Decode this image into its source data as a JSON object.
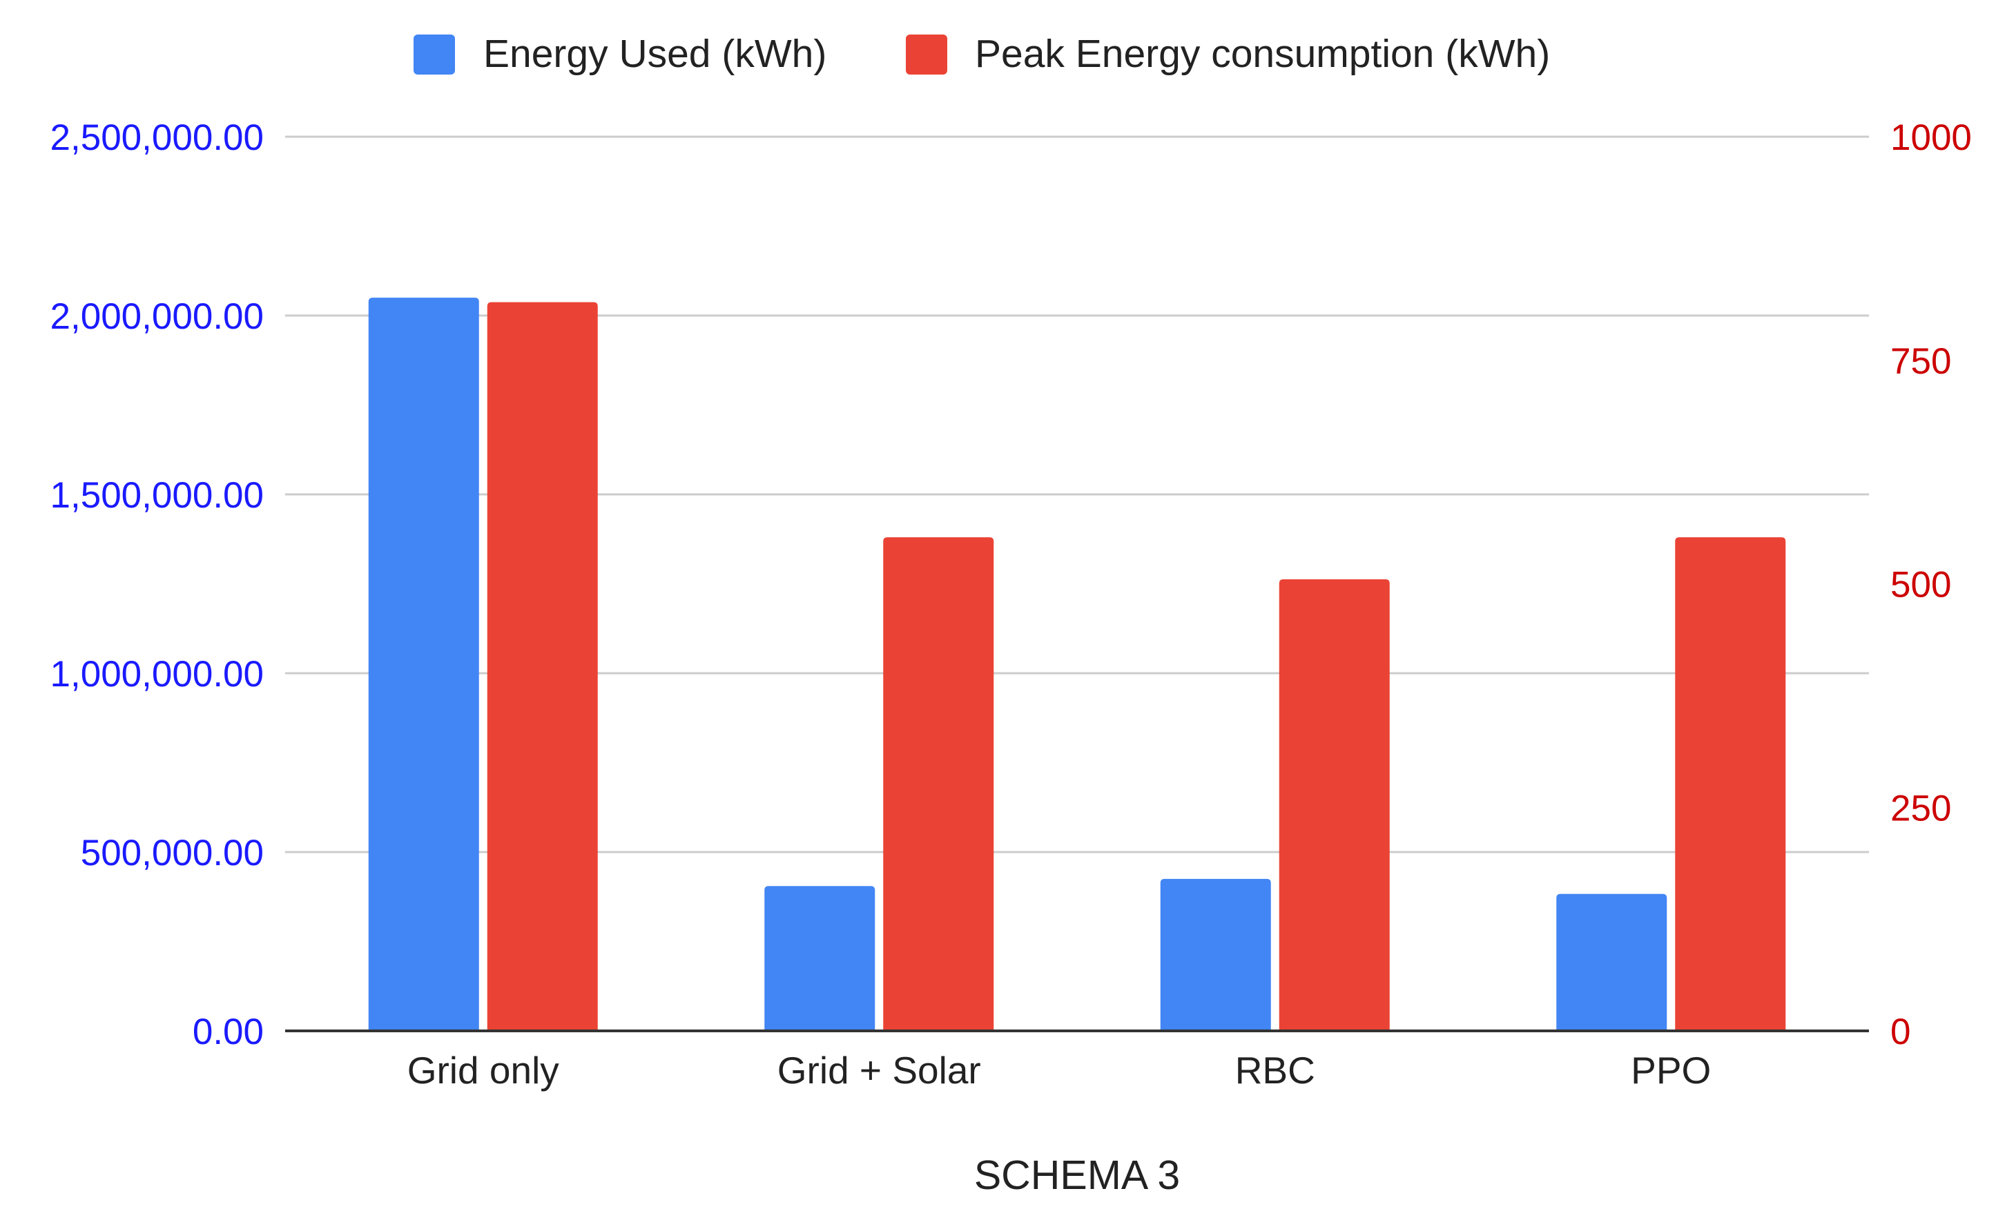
{
  "chart_data": {
    "type": "bar",
    "title": "",
    "xlabel": "SCHEMA 3",
    "ylabel_left": "",
    "ylabel_right": "",
    "categories": [
      "Grid only",
      "Grid + Solar",
      "RBC",
      "PPO"
    ],
    "series": [
      {
        "name": "Energy Used (kWh)",
        "axis": "left",
        "color": "#4285f4",
        "values": [
          2050000,
          405000,
          425000,
          383000
        ]
      },
      {
        "name": "Peak Energy consumption (kWh)",
        "axis": "right",
        "color": "#ea4335",
        "values": [
          815,
          552,
          505,
          552
        ]
      }
    ],
    "y_left": {
      "range": [
        0,
        2500000
      ],
      "ticks": [
        0,
        500000,
        1000000,
        1500000,
        2000000,
        2500000
      ],
      "tick_labels": [
        "0.00",
        "500,000.00",
        "1,000,000.00",
        "1,500,000.00",
        "2,000,000.00",
        "2,500,000.00"
      ],
      "color": "#1a1aff"
    },
    "y_right": {
      "range": [
        0,
        1000
      ],
      "ticks": [
        0,
        250,
        500,
        750,
        1000
      ],
      "tick_labels": [
        "0",
        "250",
        "500",
        "750",
        "1000"
      ],
      "color": "#cc0000"
    },
    "grid": true,
    "legend_position": "top-center"
  }
}
